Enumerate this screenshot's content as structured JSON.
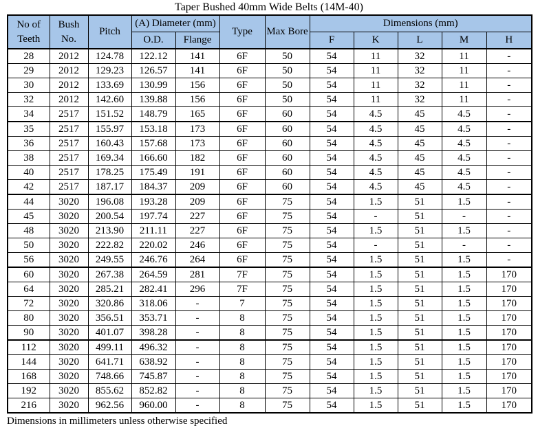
{
  "title": "Taper Bushed 40mm Wide Belts (14M-40)",
  "footer_note": "Dimensions in millimeters unless otherwise specified",
  "colors": {
    "header_bg": "#a7c6e9",
    "border": "#000000",
    "page_bg": "#ffffff"
  },
  "table": {
    "group_headers": {
      "no_of_teeth": "No of Teeth",
      "bush_no": "Bush No.",
      "pitch": "Pitch",
      "diameter": "(A) Diameter (mm)",
      "type": "Type",
      "max_bore": "Max Bore",
      "dimensions": "Dimensions (mm)"
    },
    "sub_headers": {
      "od": "O.D.",
      "flange": "Flange",
      "f": "F",
      "k": "K",
      "l": "L",
      "m": "M",
      "h": "H"
    },
    "columns": [
      "No of Teeth",
      "Bush No.",
      "Pitch",
      "O.D.",
      "Flange",
      "Type",
      "Max Bore",
      "F",
      "K",
      "L",
      "M",
      "H"
    ],
    "group_break_after": [
      4,
      9,
      14,
      19
    ],
    "rows": [
      [
        "28",
        "2012",
        "124.78",
        "122.12",
        "141",
        "6F",
        "50",
        "54",
        "11",
        "32",
        "11",
        "-"
      ],
      [
        "29",
        "2012",
        "129.23",
        "126.57",
        "141",
        "6F",
        "50",
        "54",
        "11",
        "32",
        "11",
        "-"
      ],
      [
        "30",
        "2012",
        "133.69",
        "130.99",
        "156",
        "6F",
        "50",
        "54",
        "11",
        "32",
        "11",
        "-"
      ],
      [
        "32",
        "2012",
        "142.60",
        "139.88",
        "156",
        "6F",
        "50",
        "54",
        "11",
        "32",
        "11",
        "-"
      ],
      [
        "34",
        "2517",
        "151.52",
        "148.79",
        "165",
        "6F",
        "60",
        "54",
        "4.5",
        "45",
        "4.5",
        "-"
      ],
      [
        "35",
        "2517",
        "155.97",
        "153.18",
        "173",
        "6F",
        "60",
        "54",
        "4.5",
        "45",
        "4.5",
        "-"
      ],
      [
        "36",
        "2517",
        "160.43",
        "157.68",
        "173",
        "6F",
        "60",
        "54",
        "4.5",
        "45",
        "4.5",
        "-"
      ],
      [
        "38",
        "2517",
        "169.34",
        "166.60",
        "182",
        "6F",
        "60",
        "54",
        "4.5",
        "45",
        "4.5",
        "-"
      ],
      [
        "40",
        "2517",
        "178.25",
        "175.49",
        "191",
        "6F",
        "60",
        "54",
        "4.5",
        "45",
        "4.5",
        "-"
      ],
      [
        "42",
        "2517",
        "187.17",
        "184.37",
        "209",
        "6F",
        "60",
        "54",
        "4.5",
        "45",
        "4.5",
        "-"
      ],
      [
        "44",
        "3020",
        "196.08",
        "193.28",
        "209",
        "6F",
        "75",
        "54",
        "1.5",
        "51",
        "1.5",
        "-"
      ],
      [
        "45",
        "3020",
        "200.54",
        "197.74",
        "227",
        "6F",
        "75",
        "54",
        "-",
        "51",
        "-",
        "-"
      ],
      [
        "48",
        "3020",
        "213.90",
        "211.11",
        "227",
        "6F",
        "75",
        "54",
        "1.5",
        "51",
        "1.5",
        "-"
      ],
      [
        "50",
        "3020",
        "222.82",
        "220.02",
        "246",
        "6F",
        "75",
        "54",
        "-",
        "51",
        "-",
        "-"
      ],
      [
        "56",
        "3020",
        "249.55",
        "246.76",
        "264",
        "6F",
        "75",
        "54",
        "1.5",
        "51",
        "1.5",
        "-"
      ],
      [
        "60",
        "3020",
        "267.38",
        "264.59",
        "281",
        "7F",
        "75",
        "54",
        "1.5",
        "51",
        "1.5",
        "170"
      ],
      [
        "64",
        "3020",
        "285.21",
        "282.41",
        "296",
        "7F",
        "75",
        "54",
        "1.5",
        "51",
        "1.5",
        "170"
      ],
      [
        "72",
        "3020",
        "320.86",
        "318.06",
        "-",
        "7",
        "75",
        "54",
        "1.5",
        "51",
        "1.5",
        "170"
      ],
      [
        "80",
        "3020",
        "356.51",
        "353.71",
        "-",
        "8",
        "75",
        "54",
        "1.5",
        "51",
        "1.5",
        "170"
      ],
      [
        "90",
        "3020",
        "401.07",
        "398.28",
        "-",
        "8",
        "75",
        "54",
        "1.5",
        "51",
        "1.5",
        "170"
      ],
      [
        "112",
        "3020",
        "499.11",
        "496.32",
        "-",
        "8",
        "75",
        "54",
        "1.5",
        "51",
        "1.5",
        "170"
      ],
      [
        "144",
        "3020",
        "641.71",
        "638.92",
        "-",
        "8",
        "75",
        "54",
        "1.5",
        "51",
        "1.5",
        "170"
      ],
      [
        "168",
        "3020",
        "748.66",
        "745.87",
        "-",
        "8",
        "75",
        "54",
        "1.5",
        "51",
        "1.5",
        "170"
      ],
      [
        "192",
        "3020",
        "855.62",
        "852.82",
        "-",
        "8",
        "75",
        "54",
        "1.5",
        "51",
        "1.5",
        "170"
      ],
      [
        "216",
        "3020",
        "962.56",
        "960.00",
        "-",
        "8",
        "75",
        "54",
        "1.5",
        "51",
        "1.5",
        "170"
      ]
    ]
  }
}
